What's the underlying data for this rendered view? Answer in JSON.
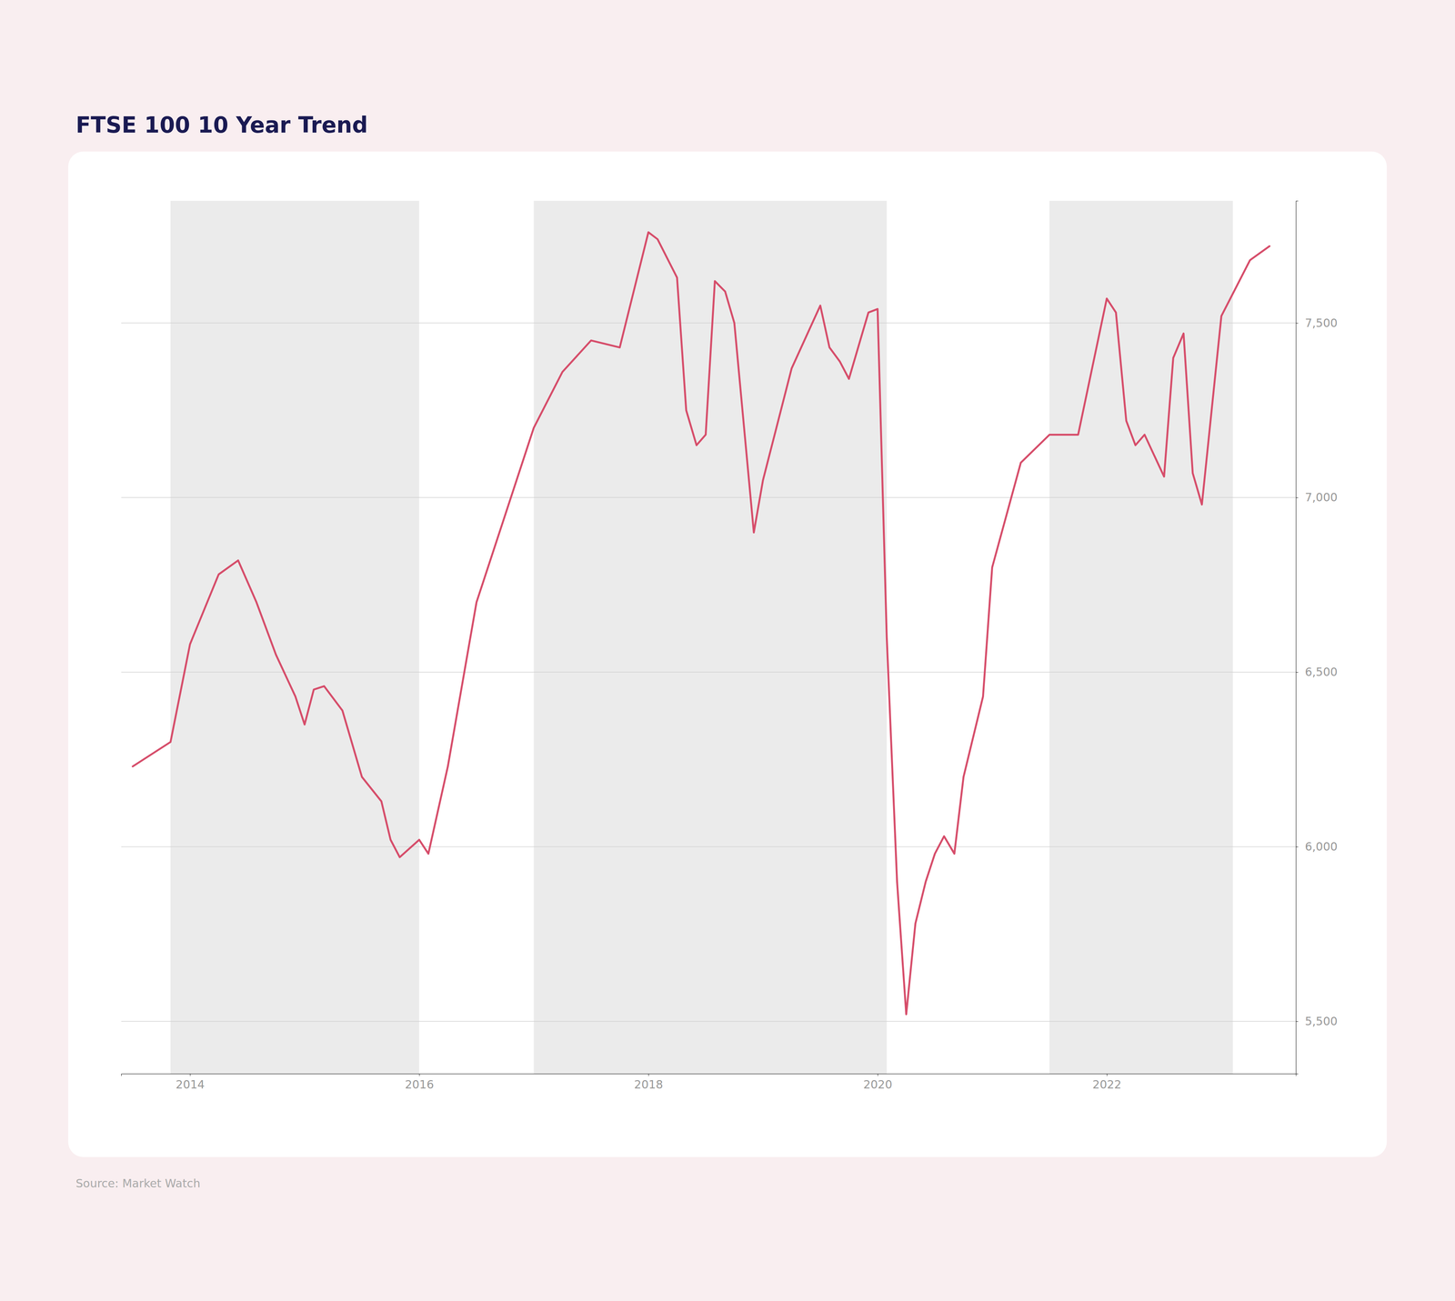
{
  "chart_data": {
    "type": "line",
    "title": "FTSE 100 10 Year Trend",
    "source": "Source: Market Watch",
    "color": "#d64d6a",
    "x": [
      2013.5,
      2013.83,
      2014.0,
      2014.25,
      2014.42,
      2014.5,
      2014.58,
      2014.75,
      2014.92,
      2015.0,
      2015.08,
      2015.17,
      2015.33,
      2015.5,
      2015.67,
      2015.75,
      2015.83,
      2016.0,
      2016.08,
      2016.25,
      2016.5,
      2016.75,
      2017.0,
      2017.25,
      2017.5,
      2017.75,
      2018.0,
      2018.08,
      2018.25,
      2018.33,
      2018.42,
      2018.5,
      2018.58,
      2018.67,
      2018.75,
      2018.92,
      2019.0,
      2019.25,
      2019.5,
      2019.58,
      2019.67,
      2019.75,
      2019.92,
      2020.0,
      2020.08,
      2020.17,
      2020.25,
      2020.33,
      2020.42,
      2020.5,
      2020.58,
      2020.67,
      2020.75,
      2020.92,
      2021.0,
      2021.25,
      2021.5,
      2021.75,
      2022.0,
      2022.08,
      2022.17,
      2022.25,
      2022.33,
      2022.5,
      2022.58,
      2022.67,
      2022.75,
      2022.83,
      2023.0,
      2023.25,
      2023.42
    ],
    "values": [
      6230,
      6300,
      6580,
      6780,
      6820,
      6760,
      6700,
      6550,
      6430,
      6350,
      6450,
      6460,
      6390,
      6200,
      6130,
      6020,
      5970,
      6020,
      5980,
      6230,
      6700,
      6950,
      7200,
      7360,
      7450,
      7430,
      7760,
      7740,
      7630,
      7250,
      7150,
      7180,
      7620,
      7590,
      7500,
      6900,
      7050,
      7370,
      7550,
      7430,
      7390,
      7340,
      7530,
      7540,
      6600,
      5900,
      5520,
      5780,
      5900,
      5980,
      6030,
      5980,
      6200,
      6430,
      6800,
      7100,
      7180,
      7180,
      7570,
      7530,
      7220,
      7150,
      7180,
      7060,
      7400,
      7470,
      7070,
      6980,
      7520,
      7680,
      7720
    ],
    "shade_bands": [
      [
        2013.83,
        2016.0
      ],
      [
        2017.0,
        2020.08
      ],
      [
        2021.5,
        2023.1
      ]
    ],
    "shade_color": "#ebebeb",
    "xlim": [
      2013.4,
      2023.65
    ],
    "xticks": [
      2014,
      2016,
      2018,
      2020,
      2022
    ],
    "ylim": [
      5350,
      7850
    ],
    "yticks": [
      {
        "value": 5500,
        "label": "5,500"
      },
      {
        "value": 6000,
        "label": "6,000"
      },
      {
        "value": 6500,
        "label": "6,500"
      },
      {
        "value": 7000,
        "label": "7,000"
      },
      {
        "value": 7500,
        "label": "7,500"
      }
    ],
    "grid": true
  }
}
